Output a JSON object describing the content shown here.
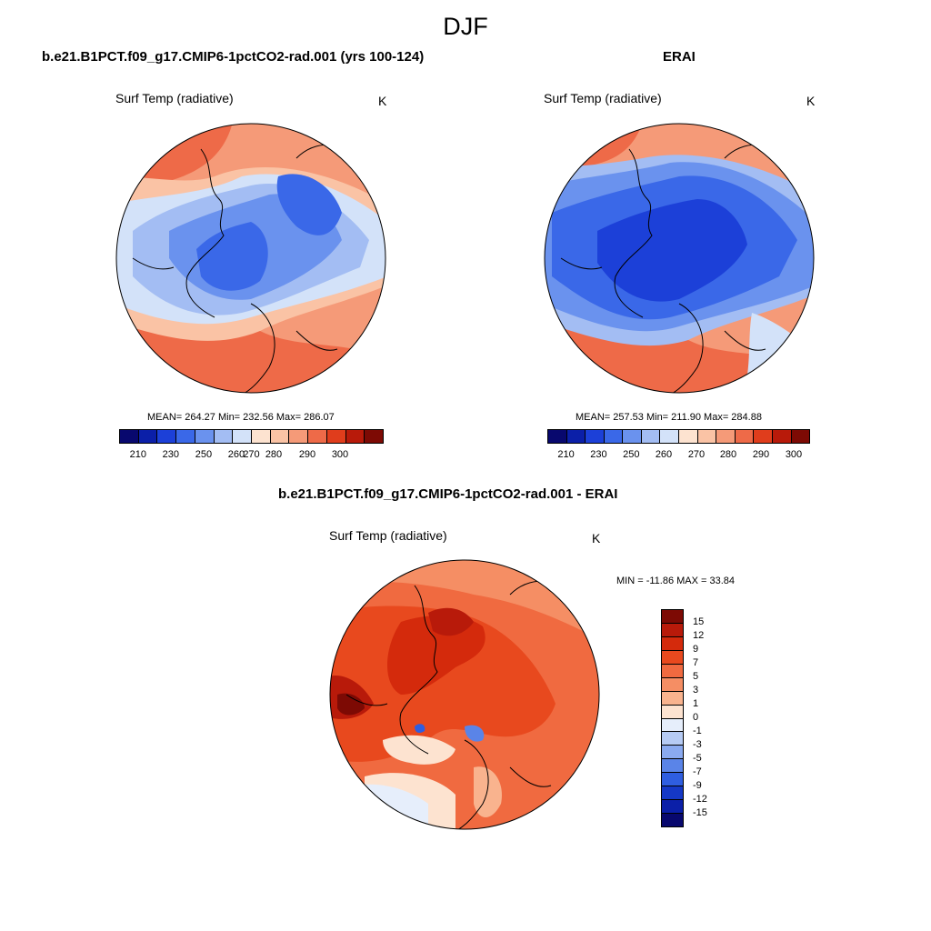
{
  "figure": {
    "title": "DJF"
  },
  "panel_model": {
    "title": "b.e21.B1PCT.f09_g17.CMIP6-1pctCO2-rad.001 (yrs 100-124)",
    "variable": "Surf Temp (radiative)",
    "unit": "K",
    "stats": "MEAN= 264.27  Min= 232.56  Max= 286.07",
    "mean": 264.27,
    "min": 232.56,
    "max": 286.07
  },
  "panel_obs": {
    "title": "ERAI",
    "variable": "Surf Temp (radiative)",
    "unit": "K",
    "stats": "MEAN= 257.53  Min= 211.90  Max= 284.88",
    "mean": 257.53,
    "min": 211.9,
    "max": 284.88
  },
  "panel_diff": {
    "title": "b.e21.B1PCT.f09_g17.CMIP6-1pctCO2-rad.001 - ERAI",
    "variable": "Surf Temp (radiative)",
    "unit": "K",
    "stats": "MIN = -11.86 MAX =  33.84",
    "min": -11.86,
    "max": 33.84
  },
  "abs_colorbar": {
    "tick_labels": [
      "210",
      "230",
      "250",
      "260",
      "270",
      "280",
      "290",
      "300"
    ],
    "colors": [
      "#08086e",
      "#0b1fa8",
      "#1c40d8",
      "#3a68e8",
      "#6a92ee",
      "#a3bdf3",
      "#d3e2f9",
      "#fde3d0",
      "#fac3a5",
      "#f59a78",
      "#ee6a48",
      "#e03d1c",
      "#b81a0a",
      "#7d0a04"
    ]
  },
  "diff_colorbar": {
    "tick_labels": [
      "15",
      "12",
      "9",
      "7",
      "5",
      "3",
      "1",
      "0",
      "-1",
      "-3",
      "-5",
      "-7",
      "-9",
      "-12",
      "-15"
    ],
    "colors": [
      "#7d0a04",
      "#b81a0a",
      "#d42a0c",
      "#e8491e",
      "#f06a40",
      "#f58e64",
      "#f9b38e",
      "#fde3d0",
      "#e6eefb",
      "#b6cbf4",
      "#8aaaf0",
      "#5a84e8",
      "#2f5ee0",
      "#1538c6",
      "#0b1fa8",
      "#08086e"
    ]
  }
}
